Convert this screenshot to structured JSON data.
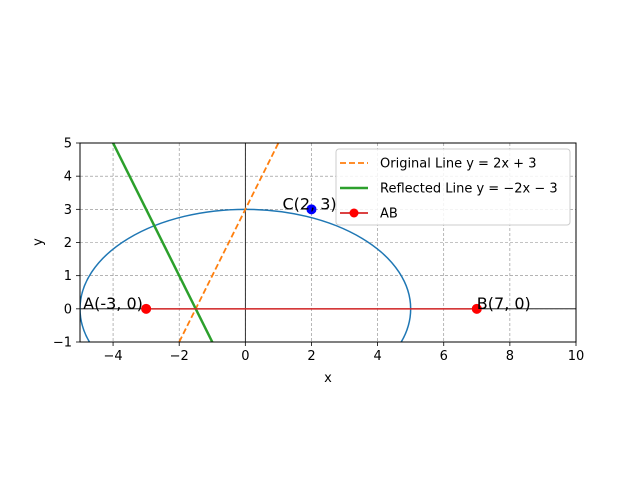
{
  "chart_data": {
    "type": "line",
    "xlabel": "x",
    "ylabel": "y",
    "xlim": [
      -5,
      10
    ],
    "ylim": [
      -1,
      5
    ],
    "xticks": [
      -4,
      -2,
      0,
      2,
      4,
      6,
      8,
      10
    ],
    "yticks": [
      -1,
      0,
      1,
      2,
      3,
      4,
      5
    ],
    "xtick_labels": [
      "−4",
      "−2",
      "0",
      "2",
      "4",
      "6",
      "8",
      "10"
    ],
    "ytick_labels": [
      "−1",
      "0",
      "1",
      "2",
      "3",
      "4",
      "5"
    ],
    "grid": true,
    "grid_style": "dashed",
    "legend_position": "top-right",
    "ellipse": {
      "center": [
        0,
        0
      ],
      "semi_axis_x": 5,
      "semi_axis_y": 3,
      "color": "#1f77b4"
    },
    "series": [
      {
        "name": "Original Line",
        "equation": "y = 2x + 3",
        "style": "dashed",
        "color": "#ff7f0e",
        "x": [
          -2,
          1
        ],
        "y": [
          -1,
          5
        ]
      },
      {
        "name": "Reflected Line",
        "equation": "y = −2x − 3",
        "style": "solid",
        "color": "#2ca02c",
        "x": [
          -4,
          -1
        ],
        "y": [
          5,
          -1
        ]
      },
      {
        "name": "AB",
        "style": "solid-markers",
        "color": "#d62728",
        "marker_color": "#ff0000",
        "x": [
          -3,
          7
        ],
        "y": [
          0,
          0
        ]
      }
    ],
    "points": [
      {
        "label": "A(-3, 0)",
        "x": -3,
        "y": 0,
        "color": "#ff0000"
      },
      {
        "label": "B(7, 0)",
        "x": 7,
        "y": 0,
        "color": "#ff0000"
      },
      {
        "label": "C(2, 3)",
        "x": 2,
        "y": 3,
        "color": "#0000ff"
      }
    ]
  }
}
